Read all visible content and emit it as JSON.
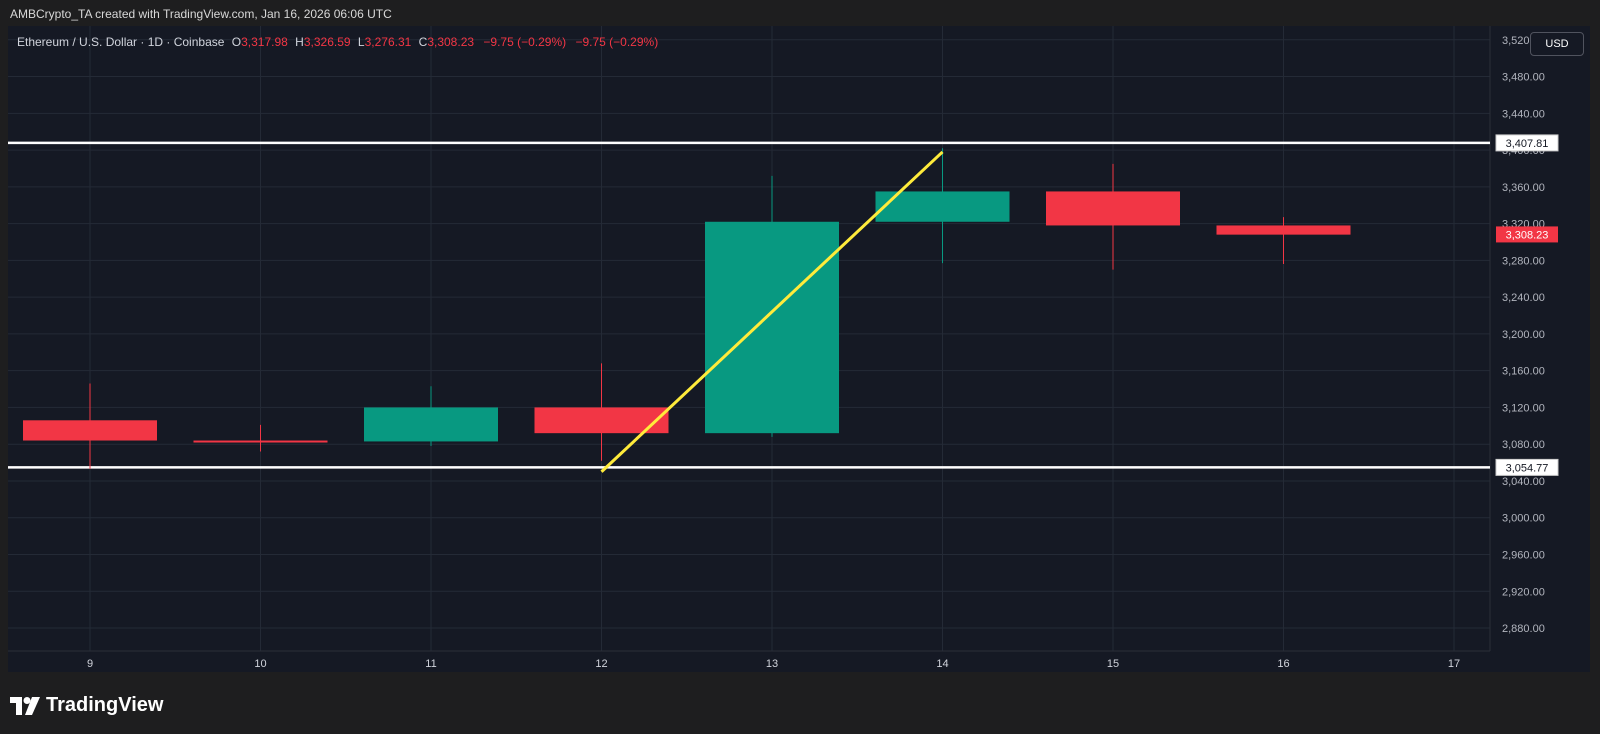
{
  "caption": "AMBCrypto_TA created with TradingView.com, Jan 16, 2026 06:06 UTC",
  "header": {
    "symbol": "Ethereum / U.S. Dollar · 1D · Coinbase",
    "o_label": "O",
    "o_value": "3,317.98",
    "h_label": "H",
    "h_value": "3,326.59",
    "l_label": "L",
    "l_value": "3,276.31",
    "c_label": "C",
    "c_value": "3,308.23",
    "change1": "−9.75 (−0.29%)",
    "change2": "−9.75 (−0.29%)"
  },
  "currency": "USD",
  "brand": "TradingView",
  "colors": {
    "up": "#089981",
    "down": "#f23645",
    "trendline": "#ffeb3b",
    "level": "#ffffff",
    "grid": "#242a36"
  },
  "chart_data": {
    "type": "candlestick",
    "x": [
      "9",
      "10",
      "11",
      "12",
      "13",
      "14",
      "15",
      "16",
      "17"
    ],
    "candles": [
      {
        "x": "9",
        "open": 3106,
        "high": 3146,
        "low": 3053,
        "close": 3084
      },
      {
        "x": "10",
        "open": 3084,
        "high": 3101,
        "low": 3072,
        "close": 3082
      },
      {
        "x": "11",
        "open": 3083,
        "high": 3143,
        "low": 3078,
        "close": 3120
      },
      {
        "x": "12",
        "open": 3120,
        "high": 3168,
        "low": 3062,
        "close": 3092
      },
      {
        "x": "13",
        "open": 3092,
        "high": 3372,
        "low": 3088,
        "close": 3322
      },
      {
        "x": "14",
        "open": 3322,
        "high": 3402,
        "low": 3277,
        "close": 3355
      },
      {
        "x": "15",
        "open": 3355,
        "high": 3385,
        "low": 3270,
        "close": 3318
      },
      {
        "x": "16",
        "open": 3318,
        "high": 3327,
        "low": 3276,
        "close": 3308
      }
    ],
    "yticks": [
      2880,
      2920,
      2960,
      3000,
      3040,
      3080,
      3120,
      3160,
      3200,
      3240,
      3280,
      3320,
      3360,
      3400,
      3440,
      3480,
      3520
    ],
    "ytick_labels": [
      "2,880.00",
      "2,920.00",
      "2,960.00",
      "3,000.00",
      "3,040.00",
      "3,080.00",
      "3,120.00",
      "3,160.00",
      "3,200.00",
      "3,240.00",
      "3,280.00",
      "3,320.00",
      "3,360.00",
      "3,400.00",
      "3,440.00",
      "3,480.00",
      "3,520.00"
    ],
    "ylim": [
      2855,
      3535
    ],
    "levels": [
      {
        "value": 3407.81,
        "label": "3,407.81"
      },
      {
        "value": 3054.77,
        "label": "3,054.77"
      }
    ],
    "last_price": {
      "value": 3308.23,
      "label": "3,308.23"
    },
    "trendline": {
      "from": {
        "x": "12",
        "y": 3050
      },
      "to": {
        "x": "14",
        "y": 3398
      }
    },
    "grid": true
  }
}
